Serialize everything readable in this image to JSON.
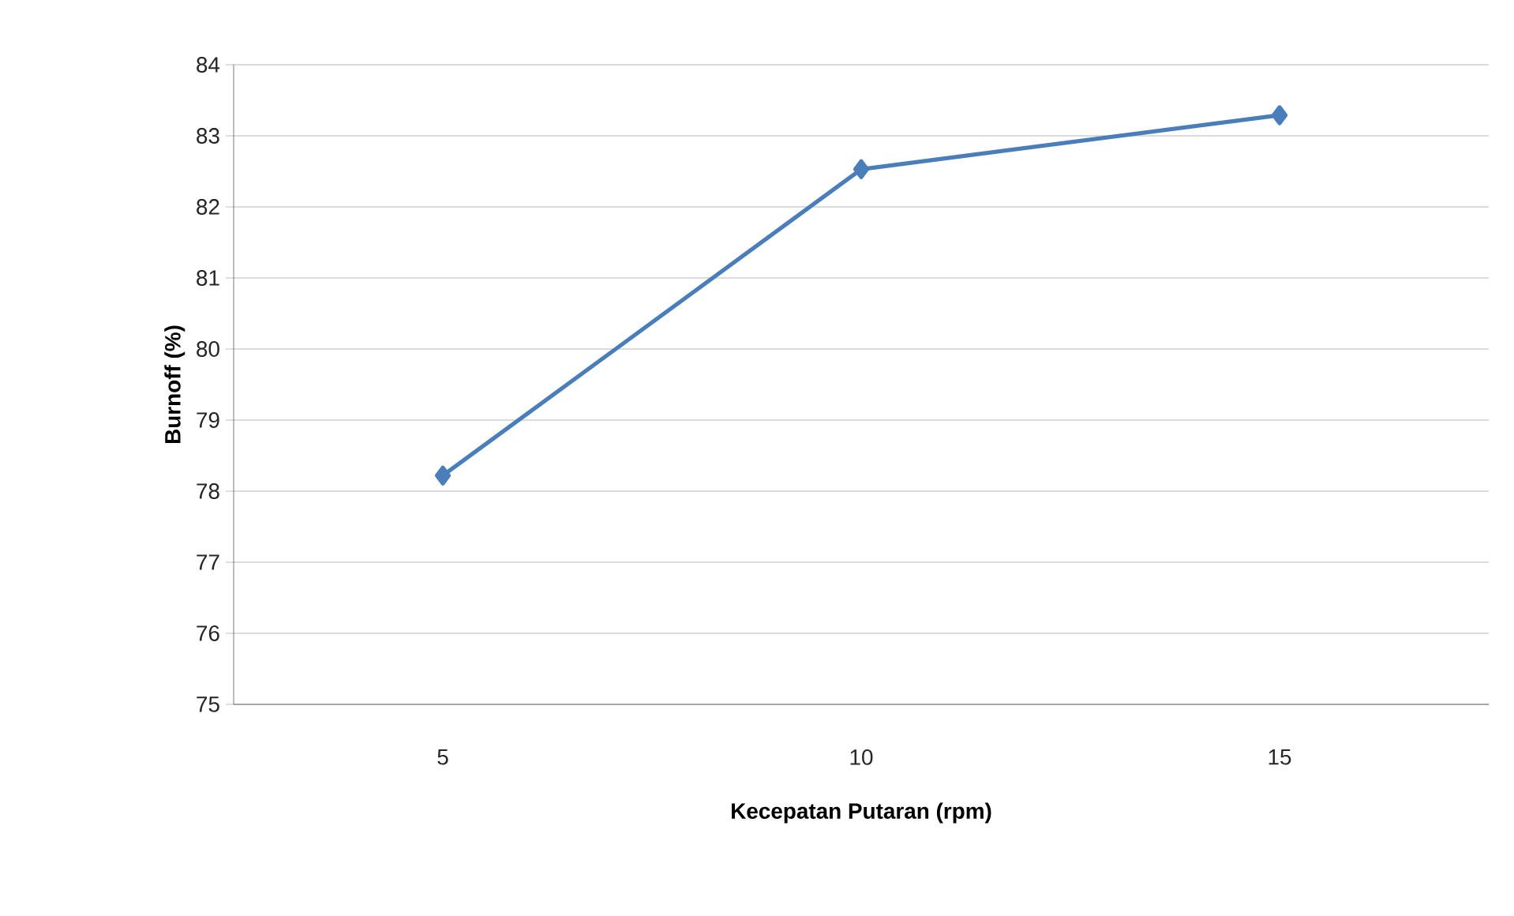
{
  "chart_data": {
    "type": "line",
    "xlabel": "Kecepatan Putaran (rpm)",
    "ylabel": "Burnoff (%)",
    "categories": [
      "5",
      "10",
      "15"
    ],
    "values": [
      78.22,
      82.53,
      83.29
    ],
    "color": "#4a7ebb",
    "marker": "diamond",
    "grid": "y",
    "ylim": [
      75,
      84
    ],
    "yticks": [
      75,
      76,
      77,
      78,
      79,
      80,
      81,
      82,
      83,
      84
    ]
  }
}
